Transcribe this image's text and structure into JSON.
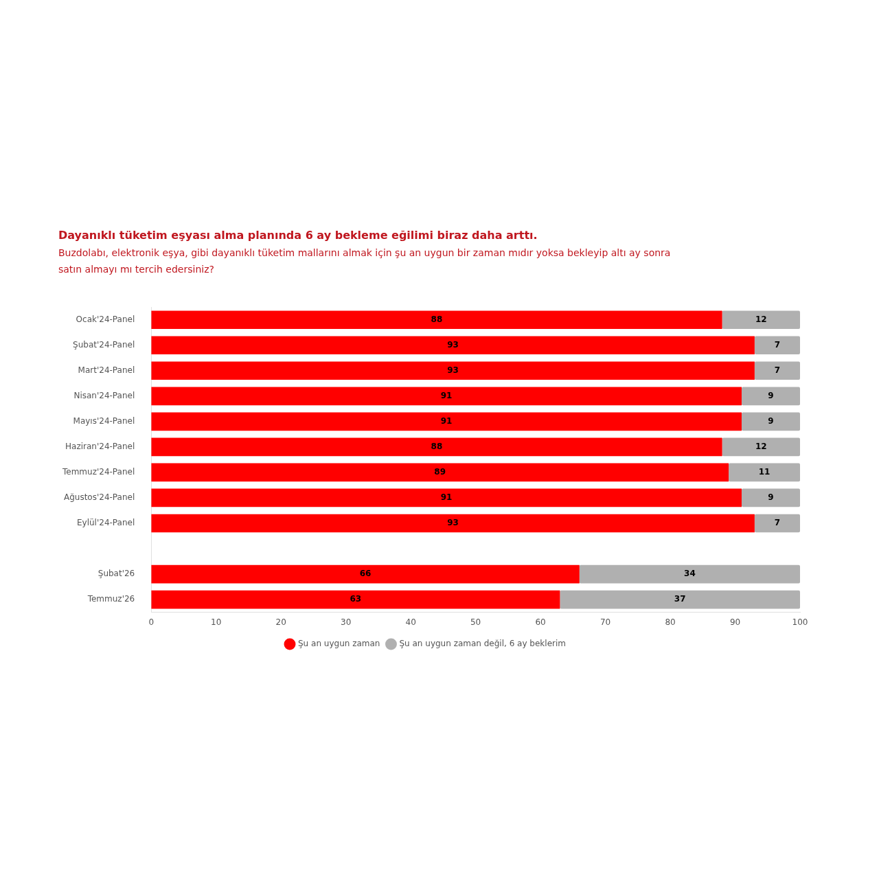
{
  "chart_data": {
    "type": "bar",
    "orientation": "horizontal",
    "stacked": true,
    "title": "Dayanıklı tüketim eşyası alma planında 6 ay bekleme eğilimi biraz daha arttı.",
    "subtitle": "Buzdolabı, elektronik eşya, gibi dayanıklı tüketim mallarını almak için şu an uygun bir zaman mıdır yoksa bekleyip altı ay sonra satın almayı mı tercih edersiniz?",
    "categories": [
      "Ocak'24-Panel",
      "Şubat'24-Panel",
      "Mart'24-Panel",
      "Nisan'24-Panel",
      "Mayıs'24-Panel",
      "Haziran'24-Panel",
      "Temmuz'24-Panel",
      "Ağustos'24-Panel",
      "Eylül'24-Panel",
      null,
      "Şubat'26",
      "Temmuz'26"
    ],
    "series": [
      {
        "name": "Şu an uygun zaman",
        "color": "#ff0000",
        "values": [
          88,
          93,
          93,
          91,
          91,
          88,
          89,
          91,
          93,
          null,
          66,
          63
        ]
      },
      {
        "name": "Şu an uygun zaman değil, 6 ay beklerim",
        "color": "#b0b0b0",
        "values": [
          12,
          7,
          7,
          9,
          9,
          12,
          11,
          9,
          7,
          null,
          34,
          37
        ]
      }
    ],
    "xlim": [
      0,
      100
    ],
    "xticks": [
      0,
      10,
      20,
      30,
      40,
      50,
      60,
      70,
      80,
      90,
      100
    ],
    "grid": false,
    "legend": "bottom",
    "data_labels": true
  }
}
